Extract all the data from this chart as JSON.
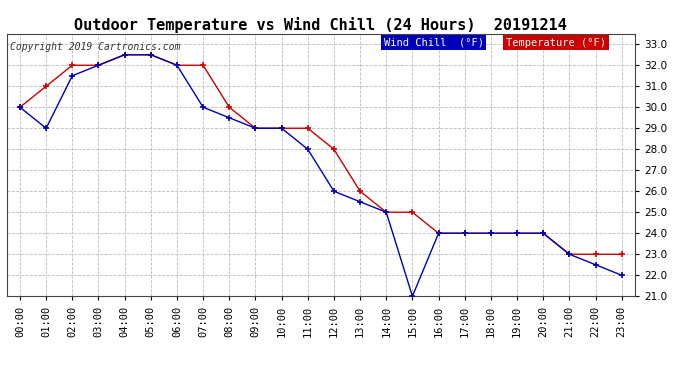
{
  "title": "Outdoor Temperature vs Wind Chill (24 Hours)  20191214",
  "copyright": "Copyright 2019 Cartronics.com",
  "ylim": [
    21.0,
    33.5
  ],
  "yticks": [
    21.0,
    22.0,
    23.0,
    24.0,
    25.0,
    26.0,
    27.0,
    28.0,
    29.0,
    30.0,
    31.0,
    32.0,
    33.0
  ],
  "hours": [
    "00:00",
    "01:00",
    "02:00",
    "03:00",
    "04:00",
    "05:00",
    "06:00",
    "07:00",
    "08:00",
    "09:00",
    "10:00",
    "11:00",
    "12:00",
    "13:00",
    "14:00",
    "15:00",
    "16:00",
    "17:00",
    "18:00",
    "19:00",
    "20:00",
    "21:00",
    "22:00",
    "23:00"
  ],
  "temperature": [
    30.0,
    31.0,
    32.0,
    32.0,
    32.5,
    32.5,
    32.0,
    32.0,
    30.0,
    29.0,
    29.0,
    29.0,
    28.0,
    26.0,
    25.0,
    25.0,
    24.0,
    24.0,
    24.0,
    24.0,
    24.0,
    23.0,
    23.0,
    23.0
  ],
  "wind_chill": [
    30.0,
    29.0,
    31.5,
    32.0,
    32.5,
    32.5,
    32.0,
    30.0,
    29.5,
    29.0,
    29.0,
    28.0,
    26.0,
    25.5,
    25.0,
    21.0,
    24.0,
    24.0,
    24.0,
    24.0,
    24.0,
    23.0,
    22.5,
    22.0
  ],
  "temp_color": "#cc0000",
  "wind_chill_color": "#0000bb",
  "background_color": "#ffffff",
  "grid_color": "#bbbbbb",
  "title_fontsize": 11,
  "tick_fontsize": 7.5,
  "copyright_fontsize": 7,
  "legend_wind_chill_bg": "#0000bb",
  "legend_temp_bg": "#cc0000",
  "legend_text_color": "#ffffff",
  "legend_fontsize": 7.5
}
